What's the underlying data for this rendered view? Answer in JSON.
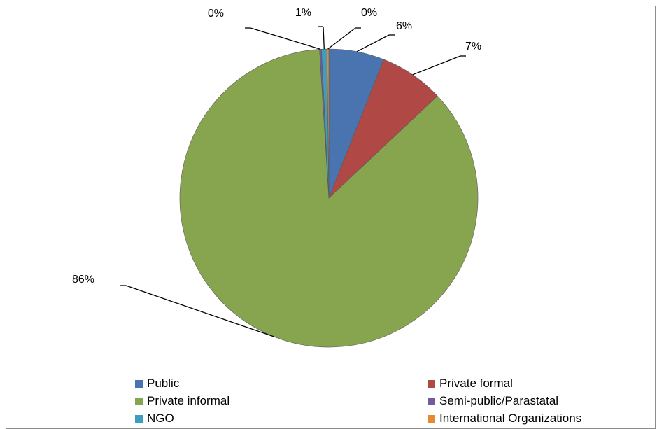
{
  "chart_data": {
    "type": "pie",
    "slices": [
      {
        "name": "Public",
        "value": 6,
        "label": "6%",
        "color": "#4a74b0"
      },
      {
        "name": "Private formal",
        "value": 7,
        "label": "7%",
        "color": "#b04845"
      },
      {
        "name": "Private informal",
        "value": 86,
        "label": "86%",
        "color": "#87a54f"
      },
      {
        "name": "Semi-public/Parastatal",
        "value": 0.2,
        "label": "0%",
        "color": "#7259a0"
      },
      {
        "name": "NGO",
        "value": 0.6,
        "label": "1%",
        "color": "#3e9fbd"
      },
      {
        "name": "International Organizations",
        "value": 0.2,
        "label": "0%",
        "color": "#e68a32"
      }
    ],
    "legend_position": "bottom",
    "start_angle_deg": 0,
    "direction": "clockwise"
  }
}
